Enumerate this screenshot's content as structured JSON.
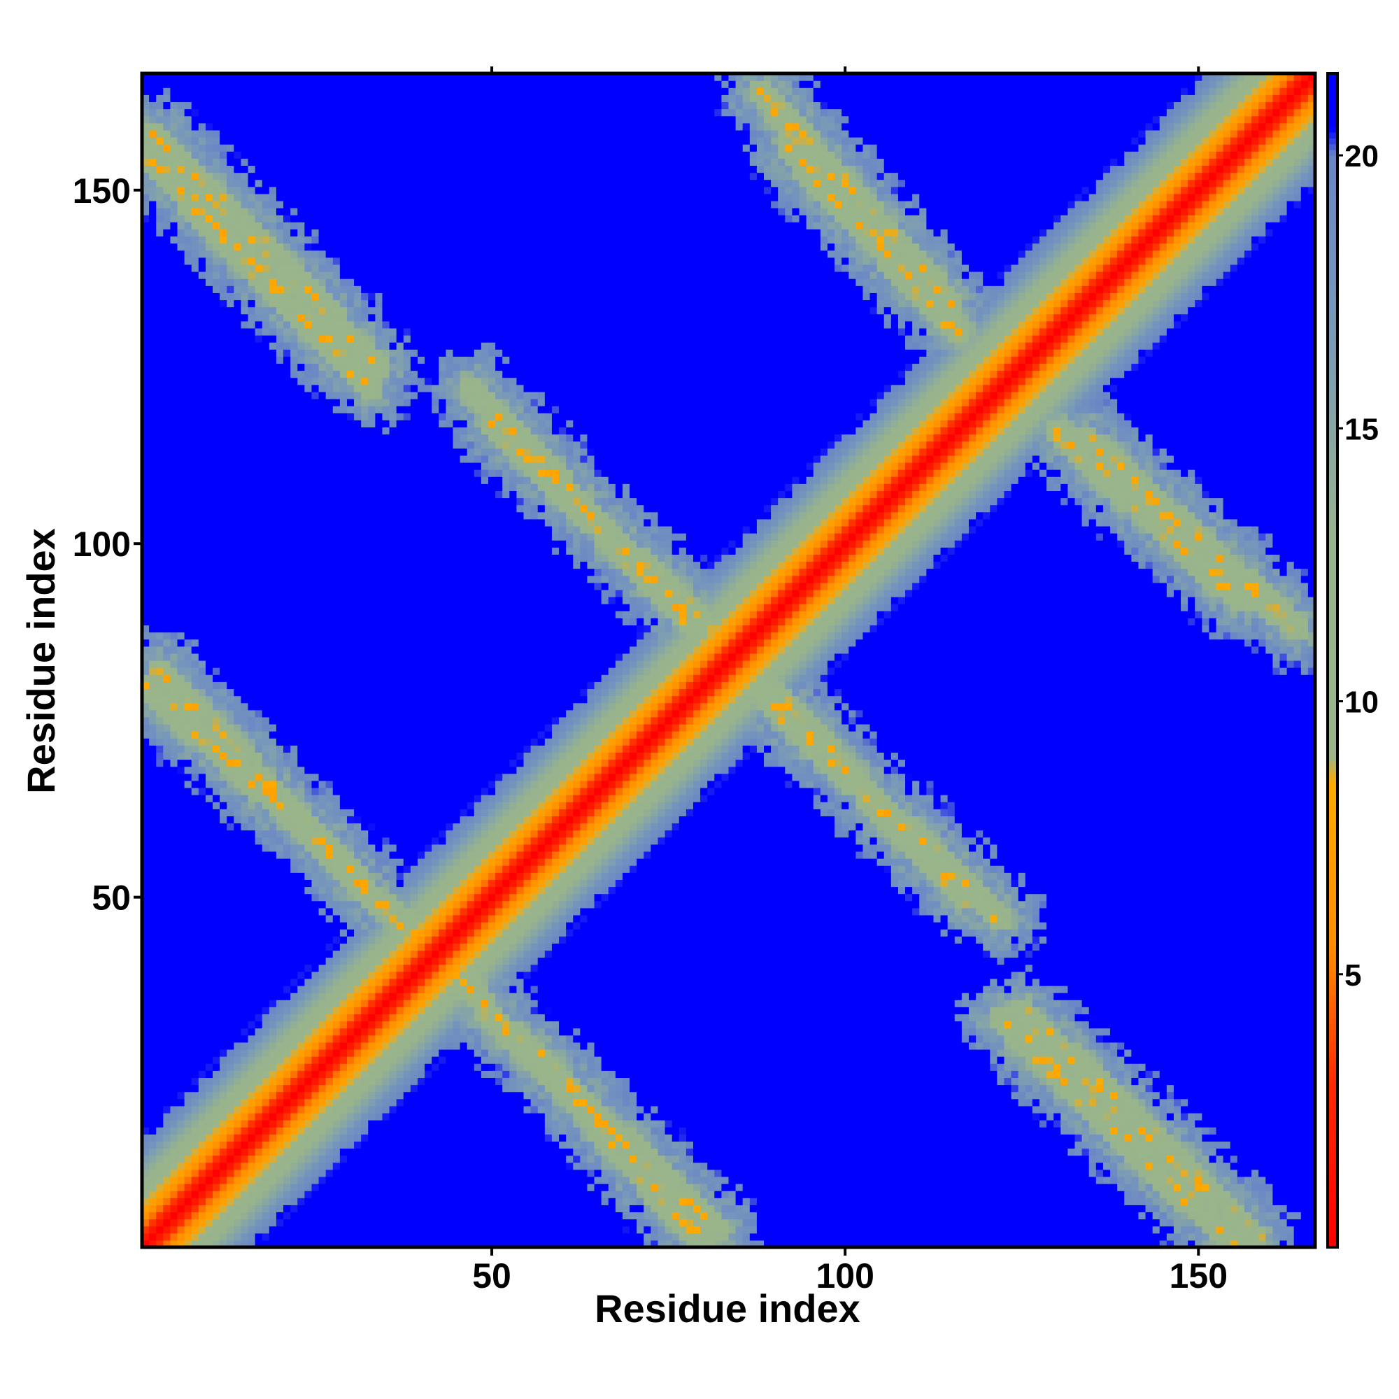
{
  "chart_data": {
    "type": "heatmap",
    "title": "",
    "xlabel": "Residue index",
    "ylabel": "Residue index",
    "n_residues": 166,
    "xlim": [
      0.5,
      166.5
    ],
    "ylim": [
      0.5,
      166.5
    ],
    "x_ticks": [
      50,
      100,
      150
    ],
    "y_ticks": [
      50,
      100,
      150
    ],
    "x_tick_labels": [
      "50",
      "100",
      "150"
    ],
    "y_tick_labels": [
      "50",
      "100",
      "150"
    ],
    "value_range": [
      0,
      21.5
    ],
    "colorbar": {
      "ticks": [
        5,
        10,
        15,
        20
      ],
      "tick_labels": [
        "5",
        "10",
        "15",
        "20"
      ],
      "position": "right"
    },
    "color_stops": [
      {
        "value": 0,
        "color": "#ff0000"
      },
      {
        "value": 3,
        "color": "#ff2a00"
      },
      {
        "value": 5.5,
        "color": "#ff8c00"
      },
      {
        "value": 8.5,
        "color": "#ffaa00"
      },
      {
        "value": 9.0,
        "color": "#9ab58a"
      },
      {
        "value": 13,
        "color": "#98b48e"
      },
      {
        "value": 17,
        "color": "#7898ba"
      },
      {
        "value": 20,
        "color": "#6a86c6"
      },
      {
        "value": 20.5,
        "color": "#0000ff"
      },
      {
        "value": 21.5,
        "color": "#0000ff"
      }
    ],
    "structure": {
      "description_bands": [
        {
          "kind": "diagonal",
          "from": [
            1,
            1
          ],
          "to": [
            166,
            166
          ]
        },
        {
          "kind": "antidiagonal",
          "from": [
            1,
            155
          ],
          "to": [
            33,
            122
          ]
        },
        {
          "kind": "antidiagonal",
          "from": [
            50,
            117
          ],
          "to": [
            85,
            84
          ]
        },
        {
          "kind": "antidiagonal",
          "from": [
            88,
            79
          ],
          "to": [
            122,
            47
          ]
        },
        {
          "kind": "antidiagonal",
          "from": [
            125,
            34
          ],
          "to": [
            158,
            2
          ]
        },
        {
          "kind": "antidiagonal",
          "from": [
            92,
            156
          ],
          "to": [
            116,
            130
          ]
        },
        {
          "kind": "antidiagonal",
          "from": [
            134,
            115
          ],
          "to": [
            164,
            88
          ]
        },
        {
          "kind": "antidiagonal",
          "from": [
            1,
            80
          ],
          "to": [
            28,
            56
          ]
        },
        {
          "kind": "antidiagonal",
          "from": [
            49,
            34
          ],
          "to": [
            82,
            3
          ]
        },
        {
          "kind": "antidiagonal",
          "from": [
            35,
            49
          ],
          "to": [
            48,
            36
          ]
        }
      ]
    }
  }
}
